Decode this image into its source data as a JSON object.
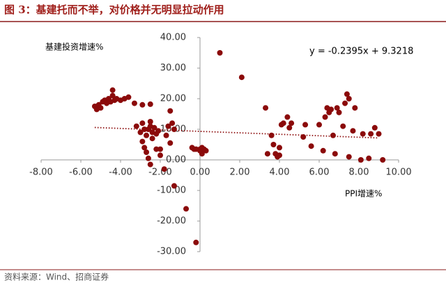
{
  "title": "图 3：基建托而不举，对价格并无明显拉动作用",
  "source": "资料来源：Wind、招商证券",
  "chart_data": {
    "type": "scatter",
    "y_label": "基建投资增速%",
    "x_label": "PPI增速%",
    "color": "#8b0a0a",
    "x": [
      -5.3,
      -5.2,
      -5.1,
      -5.0,
      -4.9,
      -4.8,
      -4.7,
      -4.6,
      -4.5,
      -4.4,
      -4.4,
      -4.3,
      -4.2,
      -4.0,
      -3.8,
      -3.6,
      -3.3,
      -2.9,
      -2.5,
      -1.5,
      -3.2,
      -3.0,
      -2.9,
      -2.8,
      -2.7,
      -2.6,
      -2.5,
      -2.5,
      -2.4,
      -2.3,
      -2.2,
      -2.1,
      -2.9,
      -2.8,
      -2.7,
      -2.6,
      -2.5,
      -2.4,
      -2.2,
      -2.0,
      -2.0,
      -1.8,
      -1.6,
      -1.4,
      -1.7,
      -1.5,
      -1.3,
      -1.3,
      -0.7,
      -0.2,
      1.0,
      2.1,
      -0.4,
      -0.3,
      -0.2,
      0.0,
      0.1,
      0.2,
      0.3,
      0.1,
      0.0,
      3.3,
      3.4,
      3.6,
      3.7,
      3.8,
      3.9,
      4.0,
      4.0,
      4.1,
      4.2,
      4.4,
      4.5,
      4.6,
      5.2,
      5.3,
      5.6,
      6.0,
      6.2,
      6.3,
      6.4,
      6.5,
      6.6,
      6.7,
      6.8,
      6.9,
      7.0,
      7.2,
      7.3,
      7.4,
      7.5,
      7.5,
      7.7,
      7.8,
      8.1,
      8.2,
      8.5,
      8.6,
      8.8,
      9.0,
      9.2
    ],
    "values": [
      17.5,
      16.5,
      18,
      17,
      19,
      19.5,
      18.5,
      20,
      19,
      22.8,
      21,
      19.5,
      20,
      19.5,
      20,
      20.5,
      18.5,
      18,
      18.2,
      16,
      11,
      9,
      12,
      10,
      8,
      10,
      12.5,
      11,
      9,
      10.5,
      8.5,
      9.5,
      6,
      4,
      2.5,
      0.5,
      -1.5,
      7,
      3.5,
      3.5,
      1.5,
      -3,
      11,
      12,
      8,
      5.5,
      10,
      -8.5,
      -16,
      -27,
      35,
      27,
      4,
      3.5,
      3.5,
      3,
      4,
      3.5,
      3,
      2,
      3.5,
      17,
      2,
      8,
      5,
      2,
      1,
      4,
      1.5,
      11.5,
      12,
      14,
      10.5,
      12,
      7.5,
      11.5,
      4.5,
      11.5,
      3,
      14,
      17,
      15.5,
      16.5,
      8,
      2,
      17,
      15.5,
      11,
      18.5,
      21.5,
      20,
      1,
      9.5,
      17,
      0,
      8.5,
      0.5,
      8.5,
      10.5,
      8.5,
      0
    ],
    "trendline": {
      "slope": -0.2395,
      "intercept": 9.3218,
      "label": "y = -0.2395x + 9.3218",
      "x_range": [
        -5.3,
        9.0
      ]
    },
    "xlim": [
      -8,
      10
    ],
    "xticks": [
      {
        "value": -8,
        "label": "-8.00"
      },
      {
        "value": -6,
        "label": "-6.00"
      },
      {
        "value": -4,
        "label": "-4.00"
      },
      {
        "value": -2,
        "label": "-2.00"
      },
      {
        "value": 0,
        "label": "0.00"
      },
      {
        "value": 2,
        "label": "2.00"
      },
      {
        "value": 4,
        "label": "4.00"
      },
      {
        "value": 6,
        "label": "6.00"
      },
      {
        "value": 8,
        "label": "8.00"
      },
      {
        "value": 10,
        "label": "10.00"
      }
    ],
    "ylim": [
      -30,
      40
    ],
    "yticks": [
      {
        "value": -30,
        "label": "-30.00"
      },
      {
        "value": -20,
        "label": "-20.00"
      },
      {
        "value": -10,
        "label": "-10.00"
      },
      {
        "value": 0,
        "label": "0.00"
      },
      {
        "value": 10,
        "label": "10.00"
      },
      {
        "value": 20,
        "label": "20.00"
      },
      {
        "value": 30,
        "label": "30.00"
      },
      {
        "value": 40,
        "label": "40.00"
      }
    ]
  }
}
